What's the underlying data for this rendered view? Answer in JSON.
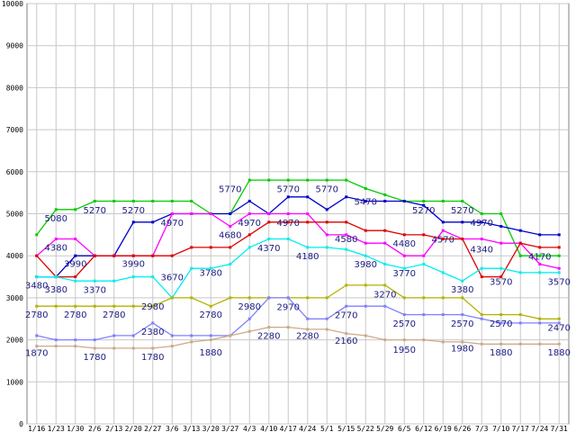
{
  "chart_data": {
    "type": "line",
    "title": "",
    "xlabel": "",
    "ylabel": "",
    "ylim": [
      0,
      10000
    ],
    "yticks": [
      0,
      1000,
      2000,
      3000,
      4000,
      5000,
      6000,
      7000,
      8000,
      9000,
      10000
    ],
    "grid": true,
    "legend": "none",
    "categories": [
      "1/16",
      "1/23",
      "1/30",
      "2/6",
      "2/13",
      "2/20",
      "2/27",
      "3/6",
      "3/13",
      "3/20",
      "3/27",
      "4/3",
      "4/10",
      "4/17",
      "4/24",
      "5/1",
      "5/15",
      "5/22",
      "5/29",
      "6/5",
      "6/12",
      "6/19",
      "6/26",
      "7/3",
      "7/10",
      "7/17",
      "7/24",
      "7/31"
    ],
    "series": [
      {
        "color": "#00cc00",
        "values": [
          4500,
          5100,
          5100,
          5300,
          5300,
          5300,
          5300,
          5300,
          5300,
          5000,
          5000,
          5800,
          5800,
          5800,
          5800,
          5800,
          5800,
          5600,
          5450,
          5300,
          5300,
          5300,
          5300,
          5000,
          5000,
          4000,
          4000,
          4000
        ]
      },
      {
        "color": "#0000cc",
        "values": [
          3500,
          3500,
          4000,
          4000,
          4000,
          4800,
          4800,
          5000,
          5000,
          5000,
          5000,
          5300,
          5000,
          5400,
          5400,
          5100,
          5400,
          5300,
          5300,
          5300,
          5200,
          4800,
          4800,
          4800,
          4700,
          4600,
          4500,
          4500
        ]
      },
      {
        "color": "#ff00ff",
        "values": [
          4000,
          4400,
          4400,
          4000,
          4000,
          4000,
          4000,
          5000,
          5000,
          5000,
          4700,
          5000,
          5000,
          5000,
          5000,
          4500,
          4500,
          4300,
          4300,
          4000,
          4000,
          4600,
          4400,
          4400,
          4300,
          4300,
          3800,
          3700
        ]
      },
      {
        "color": "#dd0000",
        "values": [
          4000,
          3500,
          3500,
          4000,
          4000,
          4000,
          4000,
          4000,
          4200,
          4200,
          4200,
          4500,
          4800,
          4800,
          4800,
          4800,
          4800,
          4600,
          4600,
          4500,
          4500,
          4400,
          4400,
          3500,
          3500,
          4300,
          4200,
          4200
        ]
      },
      {
        "color": "#00eeee",
        "values": [
          3500,
          3500,
          3400,
          3400,
          3400,
          3500,
          3500,
          3000,
          3700,
          3700,
          3800,
          4200,
          4400,
          4400,
          4200,
          4200,
          4150,
          4000,
          3800,
          3700,
          3800,
          3600,
          3400,
          3700,
          3700,
          3600,
          3600,
          3600
        ]
      },
      {
        "color": "#b3b300",
        "values": [
          2800,
          2800,
          2800,
          2800,
          2800,
          2800,
          2800,
          3000,
          3000,
          2800,
          3000,
          3000,
          3000,
          3000,
          3000,
          3000,
          3300,
          3300,
          3300,
          3000,
          3000,
          3000,
          3000,
          2600,
          2600,
          2600,
          2500,
          2500
        ]
      },
      {
        "color": "#8080ff",
        "values": [
          2100,
          2000,
          2000,
          2000,
          2100,
          2100,
          2400,
          2100,
          2100,
          2100,
          2100,
          2500,
          3000,
          3000,
          2500,
          2500,
          2800,
          2800,
          2800,
          2600,
          2600,
          2600,
          2600,
          2500,
          2400,
          2400,
          2400,
          2400
        ]
      },
      {
        "color": "#ccaa88",
        "values": [
          1850,
          1850,
          1850,
          1800,
          1800,
          1800,
          1800,
          1850,
          1950,
          2000,
          2100,
          2200,
          2300,
          2300,
          2250,
          2250,
          2150,
          2100,
          2000,
          2000,
          2000,
          1950,
          1950,
          1900,
          1900,
          1900,
          1900,
          1900
        ]
      }
    ],
    "data_labels": [
      {
        "i": 1,
        "v": 5080,
        "text": "5080"
      },
      {
        "i": 3,
        "v": 5270,
        "text": "5270"
      },
      {
        "i": 5,
        "v": 5270,
        "text": "5270"
      },
      {
        "i": 10,
        "v": 5770,
        "text": "5770"
      },
      {
        "i": 13,
        "v": 5770,
        "text": "5770"
      },
      {
        "i": 15,
        "v": 5770,
        "text": "5770"
      },
      {
        "i": 17,
        "v": 5470,
        "text": "5470"
      },
      {
        "i": 20,
        "v": 5270,
        "text": "5270"
      },
      {
        "i": 22,
        "v": 5270,
        "text": "5270"
      },
      {
        "i": 7,
        "v": 4970,
        "text": "4970"
      },
      {
        "i": 11,
        "v": 4970,
        "text": "4970"
      },
      {
        "i": 13,
        "v": 4970,
        "text": "4970"
      },
      {
        "i": 23,
        "v": 4970,
        "text": "4970"
      },
      {
        "i": 1,
        "v": 4380,
        "text": "4380"
      },
      {
        "i": 10,
        "v": 4680,
        "text": "4680"
      },
      {
        "i": 12,
        "v": 4370,
        "text": "4370"
      },
      {
        "i": 16,
        "v": 4580,
        "text": "4580"
      },
      {
        "i": 19,
        "v": 4480,
        "text": "4480"
      },
      {
        "i": 21,
        "v": 4570,
        "text": "4570"
      },
      {
        "i": 23,
        "v": 4340,
        "text": "4340"
      },
      {
        "i": 26,
        "v": 4170,
        "text": "4170"
      },
      {
        "i": 2,
        "v": 3990,
        "text": "3990"
      },
      {
        "i": 5,
        "v": 3990,
        "text": "3990"
      },
      {
        "i": 14,
        "v": 4180,
        "text": "4180"
      },
      {
        "i": 17,
        "v": 3980,
        "text": "3980"
      },
      {
        "i": 19,
        "v": 3770,
        "text": "3770"
      },
      {
        "i": 0,
        "v": 3480,
        "text": "3480"
      },
      {
        "i": 1,
        "v": 3380,
        "text": "3380"
      },
      {
        "i": 3,
        "v": 3370,
        "text": "3370"
      },
      {
        "i": 7,
        "v": 3670,
        "text": "3670"
      },
      {
        "i": 9,
        "v": 3780,
        "text": "3780"
      },
      {
        "i": 22,
        "v": 3380,
        "text": "3380"
      },
      {
        "i": 24,
        "v": 3570,
        "text": "3570"
      },
      {
        "i": 27,
        "v": 3570,
        "text": "3570"
      },
      {
        "i": 18,
        "v": 3270,
        "text": "3270"
      },
      {
        "i": 0,
        "v": 2780,
        "text": "2780"
      },
      {
        "i": 2,
        "v": 2780,
        "text": "2780"
      },
      {
        "i": 4,
        "v": 2780,
        "text": "2780"
      },
      {
        "i": 6,
        "v": 2980,
        "text": "2980"
      },
      {
        "i": 9,
        "v": 2780,
        "text": "2780"
      },
      {
        "i": 11,
        "v": 2980,
        "text": "2980"
      },
      {
        "i": 13,
        "v": 2970,
        "text": "2970"
      },
      {
        "i": 16,
        "v": 2770,
        "text": "2770"
      },
      {
        "i": 19,
        "v": 2570,
        "text": "2570"
      },
      {
        "i": 22,
        "v": 2570,
        "text": "2570"
      },
      {
        "i": 24,
        "v": 2570,
        "text": "2570"
      },
      {
        "i": 27,
        "v": 2470,
        "text": "2470"
      },
      {
        "i": 6,
        "v": 2380,
        "text": "2380"
      },
      {
        "i": 12,
        "v": 2280,
        "text": "2280"
      },
      {
        "i": 14,
        "v": 2280,
        "text": "2280"
      },
      {
        "i": 16,
        "v": 2160,
        "text": "2160"
      },
      {
        "i": 0,
        "v": 1870,
        "text": "1870"
      },
      {
        "i": 3,
        "v": 1780,
        "text": "1780"
      },
      {
        "i": 6,
        "v": 1780,
        "text": "1780"
      },
      {
        "i": 9,
        "v": 1880,
        "text": "1880"
      },
      {
        "i": 19,
        "v": 1950,
        "text": "1950"
      },
      {
        "i": 22,
        "v": 1980,
        "text": "1980"
      },
      {
        "i": 24,
        "v": 1880,
        "text": "1880"
      },
      {
        "i": 27,
        "v": 1880,
        "text": "1880"
      }
    ]
  }
}
